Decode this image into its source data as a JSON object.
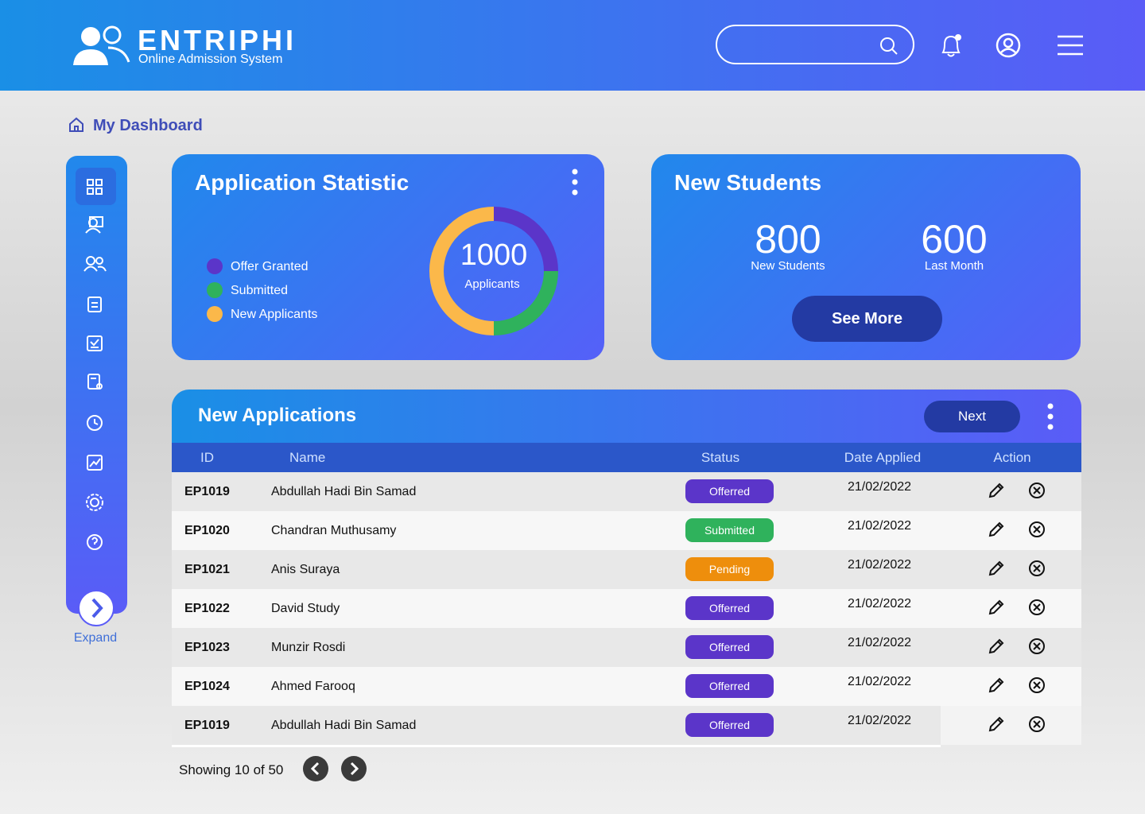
{
  "header": {
    "brand": "ENTRIPHI",
    "tagline": "Online Admission System"
  },
  "breadcrumb": "My Dashboard",
  "sidebar": {
    "expand": "Expand"
  },
  "chart_data": {
    "type": "donut",
    "title": "Application Statistic",
    "categories": [
      "Offer Granted",
      "Submitted",
      "New Applicants"
    ],
    "values": [
      25,
      25,
      50
    ],
    "colors": [
      "#5b35c9",
      "#2fb25c",
      "#fbb84a"
    ],
    "center_value": 1000,
    "center_label": "Applicants"
  },
  "new_students": {
    "title": "New Students",
    "stats": [
      {
        "value": 800,
        "label": "New Students"
      },
      {
        "value": 600,
        "label": "Last Month"
      }
    ],
    "button": "See More"
  },
  "applications": {
    "title": "New Applications",
    "button": "Next",
    "columns": [
      "ID",
      "Name",
      "Status",
      "Date Applied",
      "Action"
    ],
    "rows": [
      {
        "id": "EP1019",
        "name": "Abdullah Hadi Bin Samad",
        "status": "Offerred",
        "status_color": "#5b35c9",
        "date": "21/02/2022"
      },
      {
        "id": "EP1020",
        "name": "Chandran Muthusamy",
        "status": "Submitted",
        "status_color": "#2fb25c",
        "date": "21/02/2022"
      },
      {
        "id": "EP1021",
        "name": "Anis Suraya",
        "status": "Pending",
        "status_color": "#ee8e0c",
        "date": "21/02/2022"
      },
      {
        "id": "EP1022",
        "name": "David Study",
        "status": "Offerred",
        "status_color": "#5b35c9",
        "date": "21/02/2022"
      },
      {
        "id": "EP1023",
        "name": "Munzir Rosdi",
        "status": "Offerred",
        "status_color": "#5b35c9",
        "date": "21/02/2022"
      },
      {
        "id": "EP1024",
        "name": "Ahmed Farooq",
        "status": "Offerred",
        "status_color": "#5b35c9",
        "date": "21/02/2022"
      },
      {
        "id": "EP1019",
        "name": "Abdullah Hadi Bin Samad",
        "status": "Offerred",
        "status_color": "#5b35c9",
        "date": "21/02/2022"
      }
    ],
    "footer": "Showing 10 of 50"
  }
}
